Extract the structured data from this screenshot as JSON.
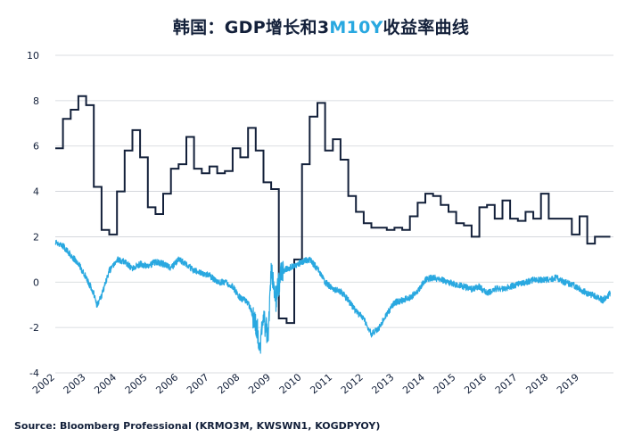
{
  "title": {
    "prefix": "韩国：GDP增长和3",
    "accent": "M10Y",
    "suffix": "收益率曲线"
  },
  "source": "Source: Bloomberg Professional  (KRMO3M, KWSWN1, KOGDPYOY)",
  "colors": {
    "gdp": "#13203a",
    "curve": "#29a8e0",
    "grid": "#cfd3d8",
    "text": "#13203a"
  },
  "chart_data": {
    "type": "line",
    "xlim": [
      2002,
      2020.1
    ],
    "ylim": [
      -4,
      10
    ],
    "yticks": [
      "-4",
      "-2",
      "0",
      "2",
      "4",
      "6",
      "8",
      "10"
    ],
    "xticks": [
      "2002",
      "2003",
      "2004",
      "2005",
      "2006",
      "2007",
      "2008",
      "2009",
      "2010",
      "2011",
      "2012",
      "2013",
      "2014",
      "2015",
      "2016",
      "2017",
      "2018",
      "2019"
    ],
    "grid": "horizontal",
    "series": [
      {
        "style": "step",
        "color": "#13203a",
        "x": [
          2002.0,
          2002.25,
          2002.5,
          2002.75,
          2003.0,
          2003.25,
          2003.5,
          2003.75,
          2004.0,
          2004.25,
          2004.5,
          2004.75,
          2005.0,
          2005.25,
          2005.5,
          2005.75,
          2006.0,
          2006.25,
          2006.5,
          2006.75,
          2007.0,
          2007.25,
          2007.5,
          2007.75,
          2008.0,
          2008.25,
          2008.5,
          2008.75,
          2009.0,
          2009.25,
          2009.5,
          2009.75,
          2010.0,
          2010.25,
          2010.5,
          2010.75,
          2011.0,
          2011.25,
          2011.5,
          2011.75,
          2012.0,
          2012.25,
          2012.5,
          2012.75,
          2013.0,
          2013.25,
          2013.5,
          2013.75,
          2014.0,
          2014.25,
          2014.5,
          2014.75,
          2015.0,
          2015.25,
          2015.5,
          2015.75,
          2016.0,
          2016.25,
          2016.5,
          2016.75,
          2017.0,
          2017.25,
          2017.5,
          2017.75,
          2018.0,
          2018.25,
          2018.5,
          2018.75,
          2019.0,
          2019.25,
          2019.5,
          2019.75,
          2020.0
        ],
        "y": [
          5.9,
          7.2,
          7.6,
          8.2,
          7.8,
          4.2,
          2.3,
          2.1,
          4.0,
          5.8,
          6.7,
          5.5,
          3.3,
          3.0,
          3.9,
          5.0,
          5.2,
          6.4,
          5.0,
          4.8,
          5.1,
          4.8,
          4.9,
          5.9,
          5.5,
          6.8,
          5.8,
          4.4,
          4.1,
          -1.6,
          -1.8,
          1.0,
          5.2,
          7.3,
          7.9,
          5.8,
          6.3,
          5.4,
          3.8,
          3.1,
          2.6,
          2.4,
          2.4,
          2.3,
          2.4,
          2.3,
          2.9,
          3.5,
          3.9,
          3.8,
          3.4,
          3.1,
          2.6,
          2.5,
          2.0,
          3.3,
          3.4,
          2.8,
          3.6,
          2.8,
          2.7,
          3.1,
          2.8,
          3.9,
          2.8,
          2.8,
          2.8,
          2.1,
          2.9,
          1.7,
          2.0,
          2.0,
          2.0
        ]
      },
      {
        "style": "noisy",
        "color": "#29a8e0",
        "x": [
          2002.0,
          2002.25,
          2002.5,
          2002.75,
          2003.0,
          2003.25,
          2003.35,
          2003.5,
          2003.75,
          2004.0,
          2004.25,
          2004.5,
          2004.75,
          2005.0,
          2005.25,
          2005.5,
          2005.75,
          2006.0,
          2006.25,
          2006.5,
          2006.75,
          2007.0,
          2007.25,
          2007.5,
          2007.75,
          2008.0,
          2008.25,
          2008.5,
          2008.65,
          2008.75,
          2008.9,
          2009.0,
          2009.15,
          2009.3,
          2009.5,
          2009.75,
          2010.0,
          2010.25,
          2010.5,
          2010.75,
          2011.0,
          2011.25,
          2011.5,
          2011.75,
          2012.0,
          2012.25,
          2012.5,
          2012.75,
          2013.0,
          2013.25,
          2013.5,
          2013.75,
          2014.0,
          2014.25,
          2014.5,
          2014.75,
          2015.0,
          2015.25,
          2015.5,
          2015.75,
          2016.0,
          2016.25,
          2016.5,
          2016.75,
          2017.0,
          2017.25,
          2017.5,
          2017.75,
          2018.0,
          2018.25,
          2018.5,
          2018.75,
          2019.0,
          2019.25,
          2019.5,
          2019.75,
          2020.0
        ],
        "y": [
          1.8,
          1.6,
          1.2,
          0.8,
          0.2,
          -0.5,
          -1.0,
          -0.6,
          0.5,
          1.0,
          0.9,
          0.6,
          0.8,
          0.7,
          0.9,
          0.8,
          0.6,
          1.0,
          0.8,
          0.5,
          0.4,
          0.3,
          0.0,
          0.0,
          -0.2,
          -0.7,
          -0.9,
          -1.8,
          -2.8,
          -1.6,
          -2.4,
          0.5,
          -0.8,
          0.3,
          0.6,
          0.7,
          0.9,
          1.0,
          0.6,
          0.0,
          -0.3,
          -0.4,
          -0.8,
          -1.3,
          -1.6,
          -2.3,
          -2.0,
          -1.4,
          -0.9,
          -0.8,
          -0.7,
          -0.4,
          0.1,
          0.2,
          0.1,
          0.0,
          -0.1,
          -0.2,
          -0.3,
          -0.2,
          -0.5,
          -0.3,
          -0.3,
          -0.2,
          -0.1,
          0.0,
          0.1,
          0.1,
          0.1,
          0.2,
          0.0,
          -0.1,
          -0.3,
          -0.5,
          -0.6,
          -0.8,
          -0.5
        ]
      }
    ]
  }
}
